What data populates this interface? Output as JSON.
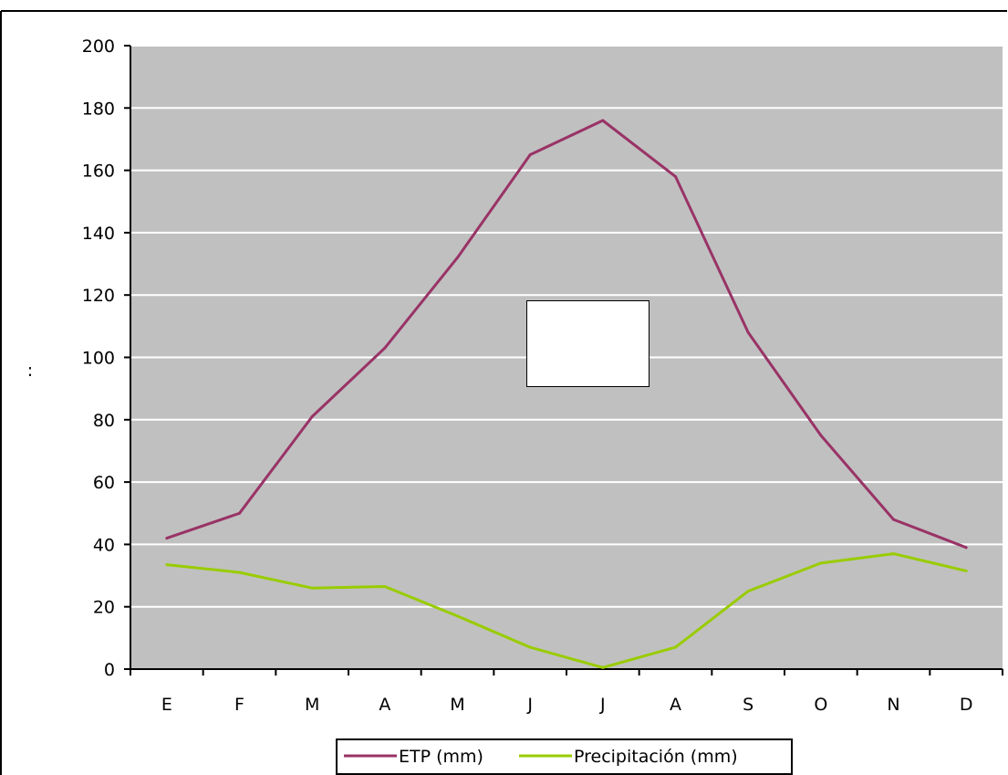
{
  "chart_data": {
    "type": "line",
    "title": "",
    "xlabel": "",
    "ylabel": ":",
    "categories": [
      "E",
      "F",
      "M",
      "A",
      "M",
      "J",
      "J",
      "A",
      "S",
      "O",
      "N",
      "D"
    ],
    "ylim": [
      0,
      200
    ],
    "yticks": [
      0,
      20,
      40,
      60,
      80,
      100,
      120,
      140,
      160,
      180,
      200
    ],
    "grid": true,
    "legend_position": "bottom",
    "series": [
      {
        "name": "ETP (mm)",
        "color": "#993366",
        "values": [
          42,
          50,
          81,
          103,
          132,
          165,
          176,
          158,
          108,
          75,
          48,
          39
        ]
      },
      {
        "name": "Precipitación (mm)",
        "color": "#99CC00",
        "values": [
          33.5,
          31,
          26,
          26.5,
          17,
          7,
          0.5,
          7,
          25,
          34,
          37,
          31.5
        ]
      }
    ],
    "colors": {
      "plot_background": "#C0C0C0",
      "gridline": "#FFFFFF",
      "border": "#000000"
    }
  }
}
